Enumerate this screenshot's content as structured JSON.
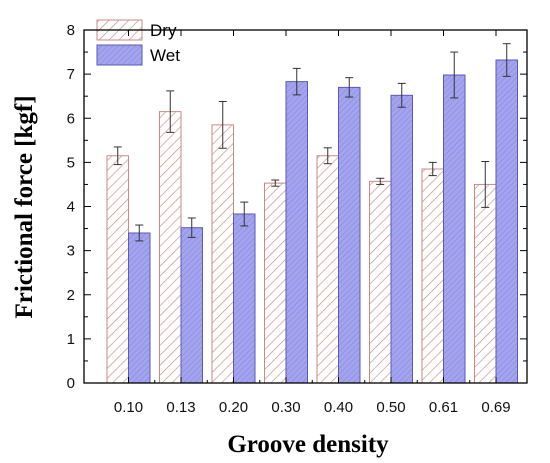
{
  "chart_data": {
    "type": "bar",
    "title": "",
    "xlabel": "Groove density",
    "ylabel": "Frictional force [kgf]",
    "categories": [
      "0.10",
      "0.13",
      "0.20",
      "0.30",
      "0.40",
      "0.50",
      "0.61",
      "0.69"
    ],
    "ylim": [
      0,
      8
    ],
    "yticks": [
      "0",
      "1",
      "2",
      "3",
      "4",
      "5",
      "6",
      "7",
      "8"
    ],
    "legend_position": "top-left",
    "grid": false,
    "series": [
      {
        "name": "Dry",
        "style": "hatched",
        "color": "#c98a86",
        "values": [
          5.15,
          6.15,
          5.85,
          4.53,
          5.15,
          4.57,
          4.85,
          4.5
        ],
        "errors": [
          0.2,
          0.47,
          0.53,
          0.07,
          0.18,
          0.07,
          0.15,
          0.52
        ]
      },
      {
        "name": "Wet",
        "style": "filled",
        "color": "#9a9ae8",
        "values": [
          3.4,
          3.52,
          3.83,
          6.83,
          6.7,
          6.52,
          6.98,
          7.32
        ],
        "errors": [
          0.18,
          0.22,
          0.27,
          0.3,
          0.22,
          0.27,
          0.52,
          0.37
        ]
      }
    ]
  }
}
